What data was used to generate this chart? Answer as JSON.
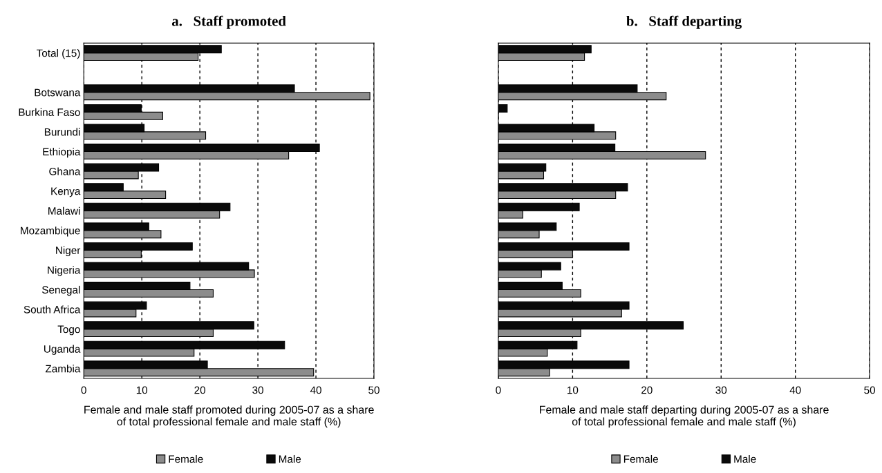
{
  "chart_data": [
    {
      "type": "bar",
      "orientation": "horizontal",
      "title": "a.   Staff promoted",
      "xlabel": "Female and male staff promoted during 2005-07 as a share\nof total professional female and male staff (%)",
      "categories": [
        "Total (15)",
        null,
        "Botswana",
        "Burkina Faso",
        "Burundi",
        "Ethiopia",
        "Ghana",
        "Kenya",
        "Malawi",
        "Mozambique",
        "Niger",
        "Nigeria",
        "Senegal",
        "South Africa",
        "Togo",
        "Uganda",
        "Zambia"
      ],
      "series": [
        {
          "name": "Female",
          "color": "#8c8c8c",
          "values": [
            19.7,
            null,
            49.3,
            13.6,
            21.0,
            35.3,
            9.4,
            14.1,
            23.4,
            13.3,
            9.9,
            29.4,
            22.3,
            9.0,
            22.3,
            19.0,
            39.6
          ]
        },
        {
          "name": "Male",
          "color": "#0a0a0a",
          "values": [
            23.7,
            null,
            36.3,
            9.9,
            10.4,
            40.6,
            12.9,
            6.8,
            25.2,
            11.2,
            18.7,
            28.4,
            18.3,
            10.8,
            29.3,
            34.6,
            21.3
          ]
        }
      ],
      "xlim": [
        0,
        50
      ],
      "xticks": [
        0,
        10,
        20,
        30,
        40,
        50
      ],
      "grid": "x",
      "legend": "bottom"
    },
    {
      "type": "bar",
      "orientation": "horizontal",
      "title": "b.   Staff departing",
      "xlabel": "Female and male staff departing during 2005-07 as a share\nof total professional female and male staff (%)",
      "categories": [
        null,
        null,
        null,
        null,
        null,
        null,
        null,
        null,
        null,
        null,
        null,
        null,
        null,
        null,
        null,
        null,
        null
      ],
      "series": [
        {
          "name": "Female",
          "color": "#8c8c8c",
          "values": [
            11.6,
            null,
            22.6,
            0,
            15.8,
            27.9,
            6.1,
            15.8,
            3.3,
            5.5,
            10.0,
            5.8,
            11.1,
            16.6,
            11.1,
            6.6,
            6.9
          ]
        },
        {
          "name": "Male",
          "color": "#0a0a0a",
          "values": [
            12.5,
            null,
            18.7,
            1.2,
            12.9,
            15.7,
            6.4,
            17.4,
            10.9,
            7.8,
            17.6,
            8.4,
            8.6,
            17.6,
            24.9,
            10.6,
            17.6
          ]
        }
      ],
      "xlim": [
        0,
        50
      ],
      "xticks": [
        0,
        10,
        20,
        30,
        40,
        50
      ],
      "grid": "x",
      "legend": "bottom",
      "tick_labels": "x"
    }
  ]
}
